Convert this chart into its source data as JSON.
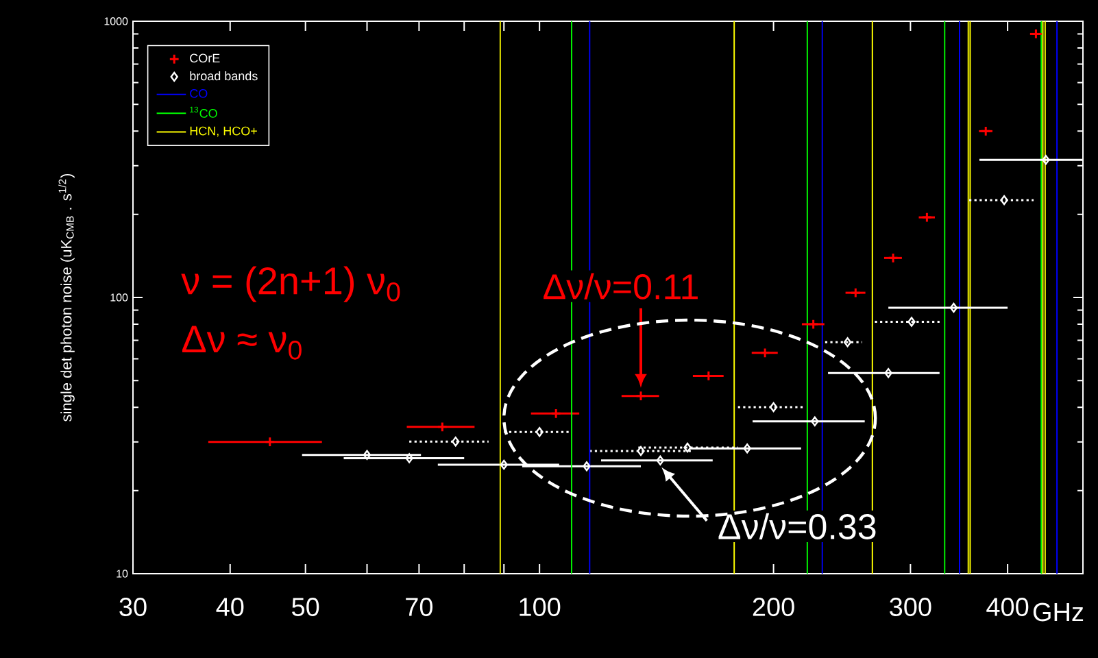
{
  "chart_data": {
    "type": "scatter",
    "ylabel": "single det photon noise (uK$_{CMB}$ . s$^{1/2}$)",
    "xlabel": "GHz",
    "log": "xy",
    "legend": "top left",
    "xlim": [
      30,
      500
    ],
    "xticks": [
      30,
      40,
      50,
      {
        "value": 60,
        "label": null
      },
      70,
      {
        "value": 80,
        "label": null
      },
      {
        "value": 90,
        "label": null
      },
      100,
      200,
      300,
      400
    ],
    "ylim": [
      10,
      1000
    ],
    "yticks": [
      10,
      100,
      1000
    ],
    "series": [
      {
        "name": "COrE",
        "color": "#ff0000",
        "marker": "cross",
        "x": [
          45,
          75,
          105,
          135,
          165,
          195,
          225,
          255,
          285,
          315,
          375,
          435
        ],
        "values": [
          30,
          34,
          38,
          44,
          52,
          63,
          80,
          104,
          139,
          195,
          400,
          900
        ],
        "xerrors": [
          7.5,
          7.5,
          7.5,
          7.5,
          7.5,
          7.5,
          7.5,
          7.5,
          7.5,
          7.5,
          7.5,
          7.5
        ]
      },
      {
        "name": "broad bands",
        "color": "#ffffff",
        "marker": "diamond",
        "line_style": "solid",
        "x": [
          60,
          68,
          90,
          115,
          143,
          185,
          226,
          281,
          341,
          448
        ],
        "values": [
          26.9,
          26.2,
          24.8,
          24.5,
          25.7,
          28.4,
          35.6,
          53.3,
          91.8,
          315
        ],
        "xerrors": [
          [
            49.5,
            70.4
          ],
          [
            56,
            80
          ],
          [
            74,
            106
          ],
          [
            95,
            135
          ],
          [
            120,
            167
          ],
          [
            156,
            217
          ],
          [
            188,
            262
          ],
          [
            235,
            327
          ],
          [
            281,
            400
          ],
          [
            368,
            500
          ]
        ]
      },
      {
        "color": "#ffffff",
        "marker": "diamond",
        "line_style": "dotted",
        "x": [
          78,
          100,
          135,
          155,
          200,
          249,
          301,
          396
        ],
        "values": [
          30.1,
          32.6,
          27.8,
          28.6,
          40.1,
          68.9,
          81.6,
          225
        ],
        "xerrors": [
          [
            68,
            86
          ],
          [
            90,
            110
          ],
          [
            116,
            157
          ],
          [
            134,
            180
          ],
          [
            180,
            219
          ],
          [
            233,
            260
          ],
          [
            270,
            327
          ],
          [
            357,
            432
          ]
        ]
      }
    ],
    "ref_lines": [
      {
        "axis": "x",
        "value": 116,
        "label": "CO",
        "color": "#0000ff"
      },
      {
        "axis": "x",
        "value": 110,
        "label": "$^{13}$CO",
        "color": "#00ff00"
      },
      {
        "axis": "x",
        "value": 89,
        "label": "HCN, HCO+",
        "color": "#ffff00"
      },
      {
        "axis": "x",
        "value": 231,
        "color": "#0000ff"
      },
      {
        "axis": "x",
        "value": 347,
        "color": "#0000ff"
      },
      {
        "axis": "x",
        "value": 463,
        "color": "#0000ff"
      },
      {
        "axis": "x",
        "value": 221,
        "color": "#00ff00"
      },
      {
        "axis": "x",
        "value": 332,
        "color": "#00ff00"
      },
      {
        "axis": "x",
        "value": 442,
        "color": "#00ff00"
      },
      {
        "axis": "x",
        "value": 178,
        "color": "#ffff00"
      },
      {
        "axis": "x",
        "value": 268,
        "color": "#ffff00"
      },
      {
        "axis": "x",
        "value": 356,
        "color": "#ffff00"
      },
      {
        "axis": "x",
        "value": 358,
        "color": "#ffff00"
      },
      {
        "axis": "x",
        "value": 444,
        "color": "#ffff00"
      },
      {
        "axis": "x",
        "value": 447,
        "color": "#ffff00"
      }
    ],
    "annotations": [
      "ν = (2n+1) ν$_{0}$",
      "Δν ≈ ν$_{0}$",
      {
        "text": "Δν/ν=0.11",
        "x": 135,
        "y": 44
      },
      {
        "text": "Δν/ν=0.33",
        "x": 143,
        "y": 25.7
      }
    ]
  }
}
